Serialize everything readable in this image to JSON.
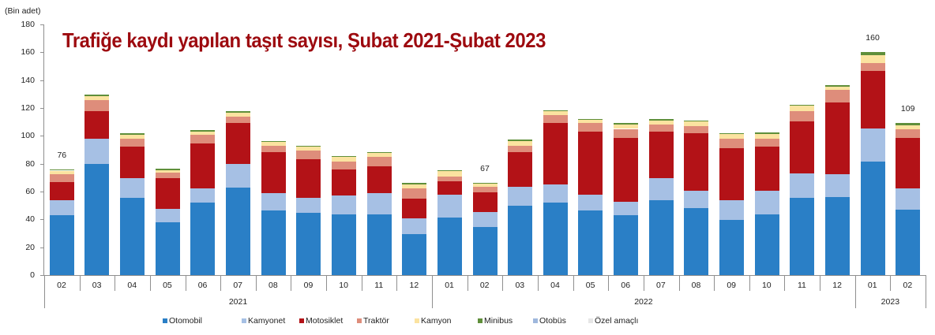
{
  "chart_data": {
    "type": "bar",
    "stacked": true,
    "title": "Trafiğe kaydı yapılan taşıt sayısı, Şubat 2021-Şubat 2023",
    "ylabel": "(Bin adet)",
    "xlabel": "",
    "ylim": [
      0,
      180
    ],
    "yticks": [
      0,
      20,
      40,
      60,
      80,
      100,
      120,
      140,
      160,
      180
    ],
    "grid": false,
    "legend_position": "bottom",
    "categories": [
      "02",
      "03",
      "04",
      "05",
      "06",
      "07",
      "08",
      "09",
      "10",
      "11",
      "12",
      "01",
      "02",
      "03",
      "04",
      "05",
      "06",
      "07",
      "08",
      "09",
      "10",
      "11",
      "12",
      "01",
      "02"
    ],
    "years": [
      {
        "label": "2021",
        "start": 0,
        "end": 10
      },
      {
        "label": "2022",
        "start": 11,
        "end": 22
      },
      {
        "label": "2023",
        "start": 23,
        "end": 24
      }
    ],
    "series": [
      {
        "name": "Otomobil",
        "color": "#2a7fc6",
        "values": [
          43,
          80,
          55.5,
          38,
          52,
          63,
          46.5,
          44.5,
          43.5,
          43.5,
          29.5,
          41.5,
          34.5,
          50,
          52,
          46.5,
          43,
          54,
          48,
          39.5,
          43.5,
          55.5,
          56,
          81.5,
          47
        ]
      },
      {
        "name": "Kamyonet",
        "color": "#a6c0e4",
        "values": [
          11,
          18,
          14,
          9.5,
          10.5,
          17,
          12.5,
          11,
          13.5,
          15.5,
          11.5,
          16.5,
          11,
          13.5,
          13,
          11.5,
          9.5,
          15.5,
          12.5,
          14.5,
          17,
          17.5,
          16.5,
          24,
          15
        ]
      },
      {
        "name": "Motosiklet",
        "color": "#b31217",
        "values": [
          13,
          20,
          22.5,
          22,
          32,
          29,
          29.5,
          27.5,
          19,
          19,
          14,
          9.5,
          14,
          25,
          44,
          45,
          46,
          33.5,
          41.5,
          37,
          31.5,
          37.5,
          51.5,
          41,
          36.5
        ]
      },
      {
        "name": "Traktör",
        "color": "#de8d7b",
        "values": [
          5.5,
          7.5,
          6,
          4,
          6,
          5,
          4.5,
          6.5,
          5.5,
          7,
          7,
          3.5,
          4,
          4.5,
          6,
          6,
          6.5,
          5,
          5,
          7,
          6,
          7.5,
          9,
          6,
          6
        ]
      },
      {
        "name": "Kamyon",
        "color": "#fbe3a0",
        "values": [
          2.5,
          3,
          3,
          2,
          2.5,
          2.5,
          2.5,
          2.5,
          3.5,
          2.5,
          3,
          3.5,
          2,
          3.5,
          2.5,
          2.5,
          3,
          3,
          3.5,
          3.5,
          3.5,
          3.5,
          2.5,
          5.5,
          3
        ]
      },
      {
        "name": "Minibus",
        "color": "#5f8f3a",
        "values": [
          1,
          1,
          1,
          1,
          1,
          1,
          0.5,
          1,
          0.5,
          1,
          1,
          1,
          1,
          1,
          1,
          0.5,
          1,
          1,
          0.5,
          0.5,
          1,
          1,
          1,
          2,
          1.5
        ]
      },
      {
        "name": "Otobüs",
        "color": "#9fb8dd",
        "values": [
          0,
          0,
          0,
          0,
          0,
          0,
          0,
          0,
          0,
          0,
          0,
          0,
          0,
          0,
          0,
          0,
          0,
          0,
          0,
          0,
          0,
          0,
          0,
          0,
          0
        ]
      },
      {
        "name": "Özel amaçlı",
        "color": "#e6e6e6",
        "values": [
          0,
          0,
          0,
          0,
          0,
          0,
          0,
          0,
          0,
          0,
          0,
          0,
          0,
          0,
          0,
          0,
          0,
          0,
          0,
          0,
          0,
          0,
          0,
          0,
          0
        ]
      }
    ],
    "annotations": [
      {
        "index": 0,
        "text": "76"
      },
      {
        "index": 12,
        "text": "67"
      },
      {
        "index": 23,
        "text": "160"
      },
      {
        "index": 24,
        "text": "109"
      }
    ]
  }
}
